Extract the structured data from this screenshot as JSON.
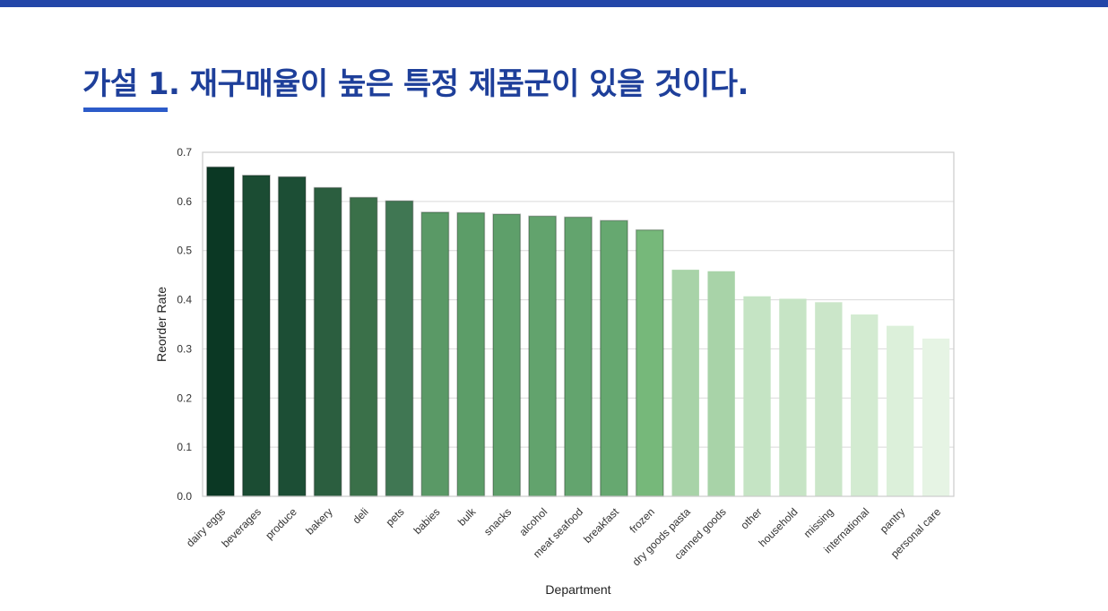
{
  "slide": {
    "title": "가설 1. 재구매율이 높은 특정 제품군이 있을 것이다."
  },
  "colors": {
    "top_bar": "#2346a8",
    "title": "#1e3f9a",
    "underline": "#2c5bc9",
    "palette": "Greens (dark to light)"
  },
  "chart_data": {
    "type": "bar",
    "xlabel": "Department",
    "ylabel": "Reorder Rate",
    "ylim": [
      0,
      0.7
    ],
    "yticks": [
      "0.0",
      "0.1",
      "0.2",
      "0.3",
      "0.4",
      "0.5",
      "0.6",
      "0.7"
    ],
    "grid": true,
    "categories": [
      "dairy eggs",
      "beverages",
      "produce",
      "bakery",
      "deli",
      "pets",
      "babies",
      "bulk",
      "snacks",
      "alcohol",
      "meat seafood",
      "breakfast",
      "frozen",
      "dry goods pasta",
      "canned goods",
      "other",
      "household",
      "missing",
      "international",
      "pantry",
      "personal care"
    ],
    "values": [
      0.67,
      0.653,
      0.65,
      0.628,
      0.608,
      0.601,
      0.578,
      0.577,
      0.574,
      0.57,
      0.568,
      0.561,
      0.542,
      0.461,
      0.458,
      0.407,
      0.402,
      0.395,
      0.37,
      0.347,
      0.321
    ],
    "bar_colors": [
      "#0b3824",
      "#1b4c33",
      "#1c4e35",
      "#2b5e3f",
      "#3a7049",
      "#407753",
      "#5a9966",
      "#5c9d68",
      "#5e9f6a",
      "#62a36d",
      "#63a46e",
      "#66a870",
      "#76b87a",
      "#a8d3a8",
      "#a8d3a8",
      "#c5e4c4",
      "#c6e4c5",
      "#cbe6c9",
      "#d3ebd1",
      "#dcf0da",
      "#e6f4e4"
    ]
  }
}
